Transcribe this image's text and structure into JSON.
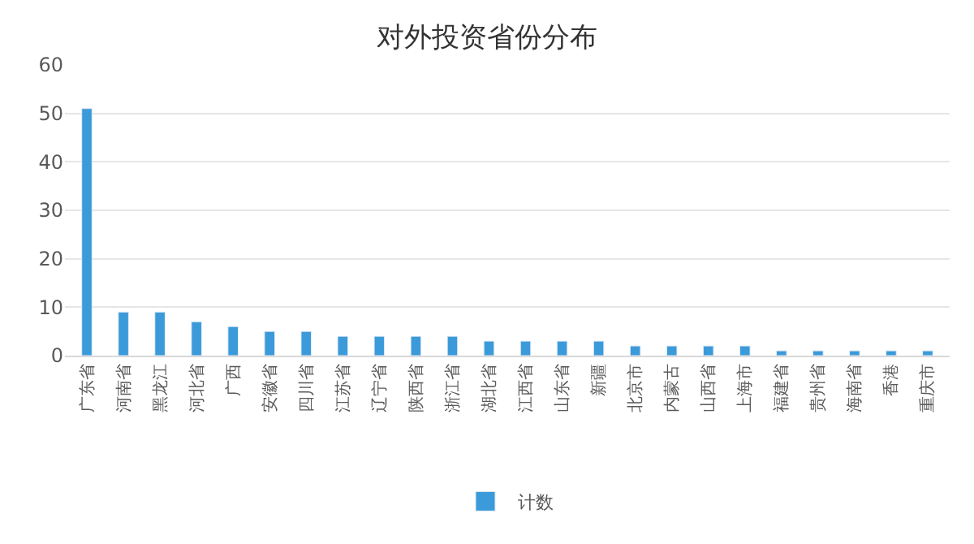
{
  "chart_data": {
    "type": "bar",
    "title": "对外投资省份分布",
    "categories": [
      "广东省",
      "河南省",
      "黑龙江",
      "河北省",
      "广西",
      "安徽省",
      "四川省",
      "江苏省",
      "辽宁省",
      "陕西省",
      "浙江省",
      "湖北省",
      "江西省",
      "山东省",
      "新疆",
      "北京市",
      "内蒙古",
      "山西省",
      "上海市",
      "福建省",
      "贵州省",
      "海南省",
      "香港",
      "重庆市"
    ],
    "series": [
      {
        "name": "计数",
        "color": "#3b9ad9",
        "values": [
          51,
          9,
          9,
          7,
          6,
          5,
          5,
          4,
          4,
          4,
          4,
          3,
          3,
          3,
          3,
          2,
          2,
          2,
          2,
          1,
          1,
          1,
          1,
          1
        ]
      }
    ],
    "ylim": [
      0,
      60
    ],
    "yticks": [
      0,
      10,
      20,
      30,
      40,
      50,
      60
    ],
    "grid": "y",
    "legend": "bottom"
  }
}
